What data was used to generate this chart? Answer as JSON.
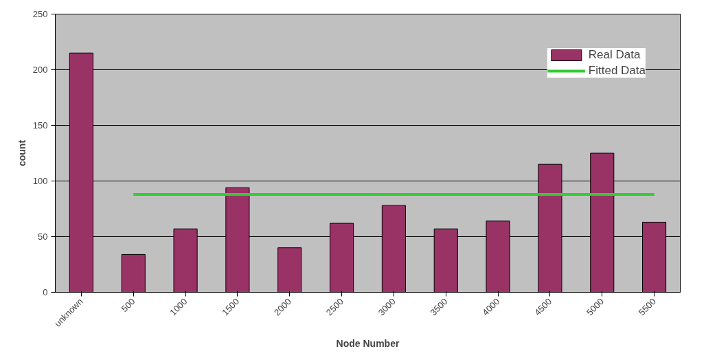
{
  "chart_data": {
    "type": "bar",
    "xlabel": "Node Number",
    "ylabel": "count",
    "categories": [
      "unknown",
      "500",
      "1000",
      "1500",
      "2000",
      "2500",
      "3000",
      "3500",
      "4000",
      "4500",
      "5000",
      "5500"
    ],
    "series": [
      {
        "name": "Real Data",
        "color": "#993366",
        "values": [
          215,
          34,
          57,
          94,
          40,
          62,
          78,
          57,
          64,
          115,
          125,
          63
        ]
      },
      {
        "name": "Fitted Data",
        "type": "line",
        "color": "#33cc33",
        "values": [
          null,
          88,
          88,
          88,
          88,
          88,
          88,
          88,
          88,
          88,
          88,
          88
        ]
      }
    ],
    "ylim": [
      0,
      250
    ],
    "yticks": [
      0,
      50,
      100,
      150,
      200,
      250
    ],
    "grid": "y",
    "legend": "top right",
    "marker": "none",
    "line_style": "solid"
  }
}
